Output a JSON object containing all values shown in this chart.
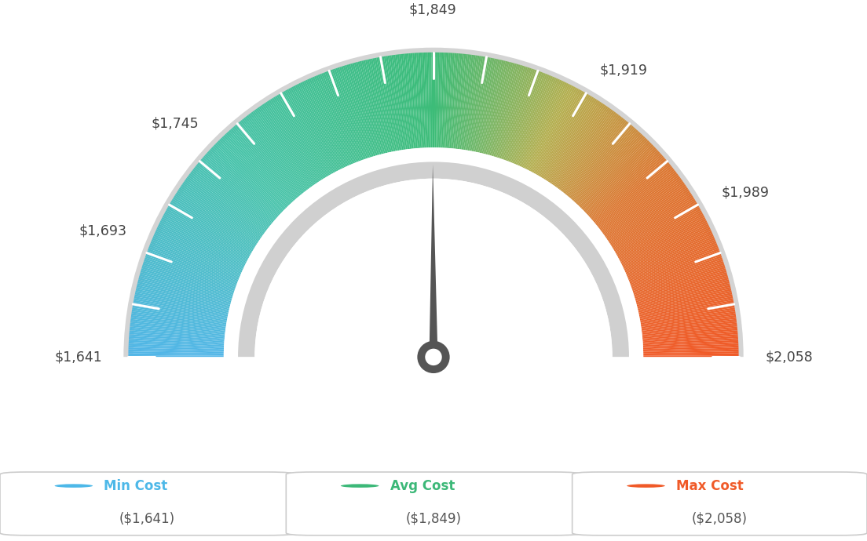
{
  "min_val": 1641,
  "max_val": 2058,
  "avg_val": 1849,
  "label_data": [
    [
      1641,
      "$1,641"
    ],
    [
      1693,
      "$1,693"
    ],
    [
      1745,
      "$1,745"
    ],
    [
      1849,
      "$1,849"
    ],
    [
      1919,
      "$1,919"
    ],
    [
      1989,
      "$1,989"
    ],
    [
      2058,
      "$2,058"
    ]
  ],
  "legend_items": [
    {
      "label": "Min Cost",
      "value": "($1,641)",
      "color": "#4db8e8"
    },
    {
      "label": "Avg Cost",
      "value": "($1,849)",
      "color": "#3cb878"
    },
    {
      "label": "Max Cost",
      "value": "($2,058)",
      "color": "#f05a28"
    }
  ],
  "color_stops": [
    [
      0.0,
      [
        82,
        182,
        232
      ]
    ],
    [
      0.25,
      [
        72,
        195,
        170
      ]
    ],
    [
      0.5,
      [
        60,
        188,
        120
      ]
    ],
    [
      0.65,
      [
        180,
        175,
        80
      ]
    ],
    [
      0.78,
      [
        220,
        120,
        50
      ]
    ],
    [
      1.0,
      [
        240,
        90,
        40
      ]
    ]
  ],
  "bg_color": "#ffffff",
  "needle_color": "#555555",
  "gauge_outer_border": "#cccccc",
  "gauge_inner_arc": "#cccccc",
  "n_ticks": 18,
  "n_segments": 500
}
